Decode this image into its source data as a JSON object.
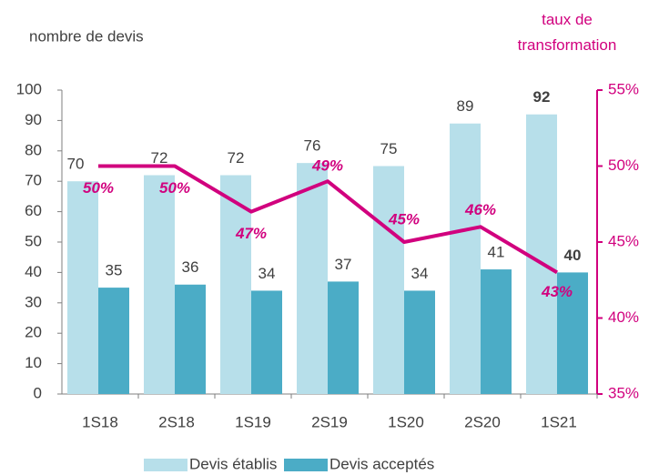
{
  "chart_data": {
    "type": "bar_line",
    "y_label": "nombre de devis",
    "y2_label": "taux de transformation",
    "categories": [
      "1S18",
      "2S18",
      "1S19",
      "2S19",
      "1S20",
      "2S20",
      "1S21"
    ],
    "series": [
      {
        "name": "Devis établis",
        "type": "bar",
        "color": "#b7dfea",
        "values": [
          70,
          72,
          72,
          76,
          75,
          89,
          92
        ]
      },
      {
        "name": "Devis acceptés",
        "type": "bar",
        "color": "#4bacc6",
        "values": [
          35,
          36,
          34,
          37,
          34,
          41,
          40
        ]
      },
      {
        "name": "taux de transformation",
        "type": "line",
        "axis": "y2",
        "color": "#d1007e",
        "values": [
          50,
          50,
          47,
          49,
          45,
          46,
          43
        ],
        "value_labels": [
          "50%",
          "50%",
          "47%",
          "49%",
          "45%",
          "46%",
          "43%"
        ]
      }
    ],
    "ylim": [
      0,
      100
    ],
    "yticks": [
      0,
      10,
      20,
      30,
      40,
      50,
      60,
      70,
      80,
      90,
      100
    ],
    "y2lim": [
      35,
      55
    ],
    "y2ticks": [
      {
        "value": 35,
        "label": "35%"
      },
      {
        "value": 40,
        "label": "40%"
      },
      {
        "value": 45,
        "label": "45%"
      },
      {
        "value": 50,
        "label": "50%"
      },
      {
        "value": 55,
        "label": "55%"
      }
    ],
    "legend": "bottom"
  }
}
